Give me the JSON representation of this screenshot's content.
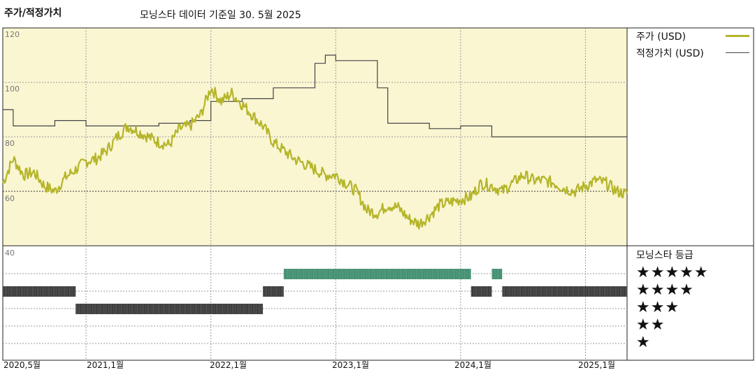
{
  "header": {
    "title": "주가/적정가치",
    "subtitle": "모닝스타 데이터 기준일 30. 5월 2025"
  },
  "legend": {
    "price_label": "주가 (USD)",
    "fair_label": "적정가치 (USD)"
  },
  "rating": {
    "title": "모닝스타 등급",
    "rows": [
      "★★★★★",
      "★★★★",
      "★★★",
      "★★",
      "★"
    ]
  },
  "colors": {
    "price": "#b5b52a",
    "fair": "#444444",
    "panel": "#faf6d2",
    "grid": "#9a9a9a",
    "rating_5": "#3a8a6a",
    "rating_other": "#333333"
  },
  "chart_data": [
    {
      "type": "line",
      "ylim": [
        40,
        120
      ],
      "yticks": [
        "120",
        "100",
        "80",
        "60",
        "40"
      ],
      "xticks": [
        "2020,5월",
        "2021,1월",
        "2022,1월",
        "2023,1월",
        "2024,1월",
        "2025,1월"
      ],
      "x_range": [
        "2020-05",
        "2025-05"
      ],
      "series": [
        {
          "name": "주가 (USD)",
          "points": [
            [
              "2020-05",
              63
            ],
            [
              "2020-06",
              72
            ],
            [
              "2020-07",
              66
            ],
            [
              "2020-08",
              67
            ],
            [
              "2020-09",
              62
            ],
            [
              "2020-10",
              60
            ],
            [
              "2020-11",
              65
            ],
            [
              "2020-12",
              68
            ],
            [
              "2021-01",
              71
            ],
            [
              "2021-02",
              72
            ],
            [
              "2021-03",
              75
            ],
            [
              "2021-04",
              80
            ],
            [
              "2021-05",
              84
            ],
            [
              "2021-06",
              82
            ],
            [
              "2021-07",
              80
            ],
            [
              "2021-08",
              78
            ],
            [
              "2021-09",
              77
            ],
            [
              "2021-10",
              83
            ],
            [
              "2021-11",
              84
            ],
            [
              "2021-12",
              88
            ],
            [
              "2022-01",
              98
            ],
            [
              "2022-02",
              93
            ],
            [
              "2022-03",
              96
            ],
            [
              "2022-04",
              92
            ],
            [
              "2022-05",
              88
            ],
            [
              "2022-06",
              84
            ],
            [
              "2022-07",
              78
            ],
            [
              "2022-08",
              75
            ],
            [
              "2022-09",
              72
            ],
            [
              "2022-10",
              70
            ],
            [
              "2022-11",
              68
            ],
            [
              "2022-12",
              66
            ],
            [
              "2023-01",
              66
            ],
            [
              "2023-02",
              63
            ],
            [
              "2023-03",
              60
            ],
            [
              "2023-04",
              53
            ],
            [
              "2023-05",
              52
            ],
            [
              "2023-06",
              55
            ],
            [
              "2023-07",
              54
            ],
            [
              "2023-08",
              50
            ],
            [
              "2023-09",
              48
            ],
            [
              "2023-10",
              51
            ],
            [
              "2023-11",
              55
            ],
            [
              "2023-12",
              56
            ],
            [
              "2024-01",
              57
            ],
            [
              "2024-02",
              58
            ],
            [
              "2024-03",
              63
            ],
            [
              "2024-04",
              62
            ],
            [
              "2024-05",
              60
            ],
            [
              "2024-06",
              63
            ],
            [
              "2024-07",
              66
            ],
            [
              "2024-08",
              64
            ],
            [
              "2024-09",
              64
            ],
            [
              "2024-10",
              63
            ],
            [
              "2024-11",
              61
            ],
            [
              "2024-12",
              60
            ],
            [
              "2025-01",
              62
            ],
            [
              "2025-02",
              64
            ],
            [
              "2025-03",
              63
            ],
            [
              "2025-04",
              60
            ],
            [
              "2025-05",
              59
            ]
          ]
        },
        {
          "name": "적정가치 (USD)",
          "points": [
            [
              "2020-05",
              90
            ],
            [
              "2020-06",
              84
            ],
            [
              "2020-10",
              86
            ],
            [
              "2021-01",
              84
            ],
            [
              "2021-08",
              85
            ],
            [
              "2021-11",
              86
            ],
            [
              "2022-01",
              93
            ],
            [
              "2022-04",
              94
            ],
            [
              "2022-07",
              98
            ],
            [
              "2022-11",
              107
            ],
            [
              "2022-12",
              110
            ],
            [
              "2023-01",
              108
            ],
            [
              "2023-05",
              98
            ],
            [
              "2023-06",
              85
            ],
            [
              "2023-10",
              83
            ],
            [
              "2024-01",
              84
            ],
            [
              "2024-04",
              80
            ],
            [
              "2025-05",
              80
            ]
          ]
        }
      ]
    },
    {
      "type": "rating_timeline",
      "levels": [
        "5",
        "4",
        "3",
        "2",
        "1"
      ],
      "periods": [
        {
          "stars": 4,
          "start": "2020-05",
          "end": "2020-12"
        },
        {
          "stars": 3,
          "start": "2020-12",
          "end": "2022-06"
        },
        {
          "stars": 4,
          "start": "2022-06",
          "end": "2022-08"
        },
        {
          "stars": 5,
          "start": "2022-08",
          "end": "2024-02"
        },
        {
          "stars": 4,
          "start": "2024-02",
          "end": "2024-04"
        },
        {
          "stars": 5,
          "start": "2024-04",
          "end": "2024-05"
        },
        {
          "stars": 4,
          "start": "2024-05",
          "end": "2025-05"
        }
      ]
    }
  ]
}
